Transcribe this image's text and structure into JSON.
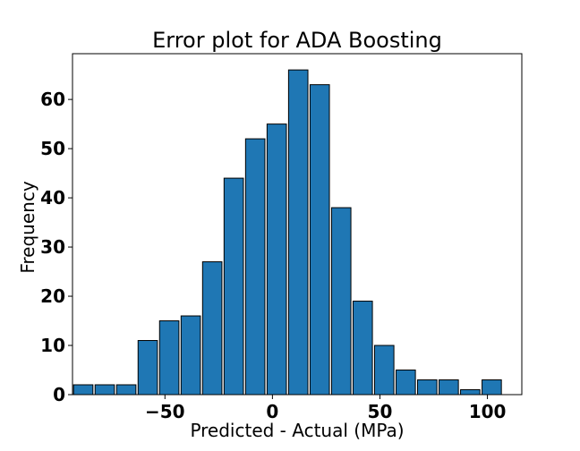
{
  "chart_data": {
    "type": "bar",
    "title": "Error plot for ADA Boosting",
    "xlabel": "Predicted - Actual (MPa)",
    "ylabel": "Frequency",
    "xlim": [
      -93,
      116
    ],
    "ylim": [
      0,
      69.3
    ],
    "xticks": [
      -50,
      0,
      50,
      100
    ],
    "xtick_labels": [
      "−50",
      "0",
      "50",
      "100"
    ],
    "yticks": [
      0,
      10,
      20,
      30,
      40,
      50,
      60
    ],
    "ytick_labels": [
      "0",
      "10",
      "20",
      "30",
      "40",
      "50",
      "60"
    ],
    "bins": [
      -88,
      -78,
      -68,
      -58,
      -48,
      -38,
      -28,
      -18,
      -8,
      2,
      12,
      22,
      32,
      42,
      52,
      62,
      72,
      82,
      92,
      102
    ],
    "values": [
      2,
      2,
      2,
      11,
      15,
      16,
      27,
      44,
      52,
      55,
      66,
      63,
      38,
      19,
      10,
      5,
      3,
      3,
      1,
      3
    ],
    "bar_color": "#1f77b4",
    "edge_color": "#000000",
    "grid": false,
    "legend": "none"
  }
}
